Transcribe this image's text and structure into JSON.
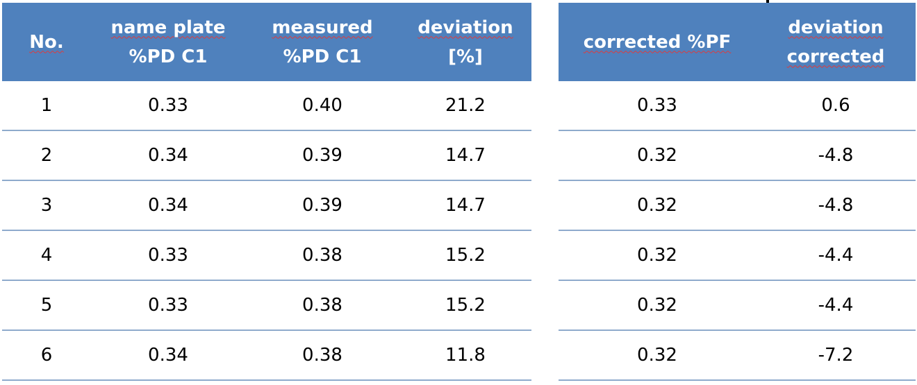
{
  "left_table": {
    "headers": [
      [
        "No."
      ],
      [
        "name plate",
        "%PD C1"
      ],
      [
        "measured",
        "%PD C1"
      ],
      [
        "deviation",
        "[%]"
      ]
    ],
    "rows": [
      [
        "1",
        "0.33",
        "0.40",
        "21.2"
      ],
      [
        "2",
        "0.34",
        "0.39",
        "14.7"
      ],
      [
        "3",
        "0.34",
        "0.39",
        "14.7"
      ],
      [
        "4",
        "0.33",
        "0.38",
        "15.2"
      ],
      [
        "5",
        "0.33",
        "0.38",
        "15.2"
      ],
      [
        "6",
        "0.34",
        "0.38",
        "11.8"
      ]
    ]
  },
  "right_table": {
    "headers": [
      [
        "corrected %PF"
      ],
      [
        "deviation",
        "corrected"
      ]
    ],
    "rows": [
      [
        "0.33",
        "0.6"
      ],
      [
        "0.32",
        "-4.8"
      ],
      [
        "0.32",
        "-4.8"
      ],
      [
        "0.32",
        "-4.4"
      ],
      [
        "0.32",
        "-4.4"
      ],
      [
        "0.32",
        "-7.2"
      ]
    ]
  },
  "colors": {
    "header_background": "#4f81bd",
    "header_text": "#ffffff",
    "row_divider": "#8eaacc",
    "spellcheck_underline": "#e03a3a"
  }
}
